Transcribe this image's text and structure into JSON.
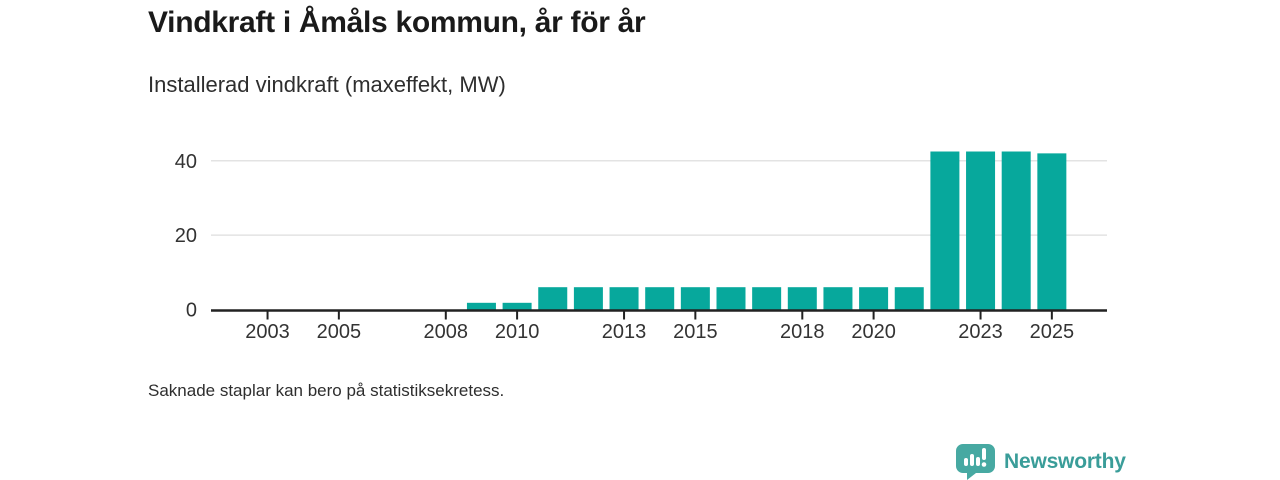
{
  "header": {
    "title": "Vindkraft i Åmåls kommun, år för år",
    "subtitle": "Installerad vindkraft (maxeffekt, MW)"
  },
  "footer": {
    "note": "Saknade staplar kan bero på statistiksekretess.",
    "brand": "Newsworthy"
  },
  "colors": {
    "title": "#1a1a1a",
    "text_dark": "#2e2e2e",
    "text": "#333333",
    "axis": "#222222",
    "grid": "#e3e3e3",
    "bar": "#07a89c",
    "brand": "#3a9d99",
    "brand_icon": "#47a9a2"
  },
  "chart_data": {
    "type": "bar",
    "title": "Vindkraft i Åmåls kommun, år för år",
    "subtitle": "Installerad vindkraft (maxeffekt, MW)",
    "xlabel": "",
    "ylabel": "Installerad vindkraft (maxeffekt, MW)",
    "x": [
      2002,
      2003,
      2004,
      2005,
      2006,
      2007,
      2008,
      2009,
      2010,
      2011,
      2012,
      2013,
      2014,
      2015,
      2016,
      2017,
      2018,
      2019,
      2020,
      2021,
      2022,
      2023,
      2024,
      2025
    ],
    "values": [
      null,
      null,
      null,
      null,
      null,
      null,
      null,
      1.8,
      1.8,
      6,
      6,
      6,
      6,
      6,
      6,
      6,
      6,
      6,
      6,
      6,
      42.5,
      42.5,
      42.5,
      42
    ],
    "xticks": [
      2003,
      2005,
      2008,
      2010,
      2013,
      2015,
      2018,
      2020,
      2023,
      2025
    ],
    "yticks": [
      0,
      20,
      40
    ],
    "ylim": [
      0,
      44
    ],
    "grid": "horizontal",
    "legend": "none",
    "note": "Saknade staplar kan bero på statistiksekretess."
  }
}
